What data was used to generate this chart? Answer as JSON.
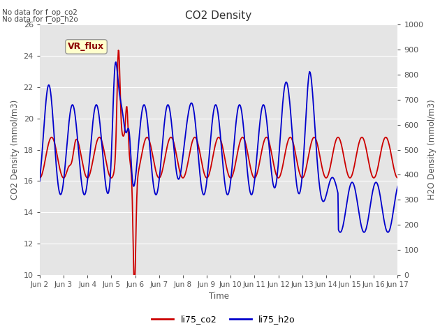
{
  "title": "CO2 Density",
  "xlabel": "Time",
  "ylabel_left": "CO2 Density (mmol/m3)",
  "ylabel_right": "H2O Density (mmol/m3)",
  "top_note1": "No data for f_op_co2",
  "top_note2": "No data for f_op_h2o",
  "vr_flux_label": "VR_flux",
  "ylim_left": [
    10,
    26
  ],
  "ylim_right": [
    0,
    1000
  ],
  "yticks_left": [
    10,
    12,
    14,
    16,
    18,
    20,
    22,
    24,
    26
  ],
  "yticks_right": [
    0,
    100,
    200,
    300,
    400,
    500,
    600,
    700,
    800,
    900,
    1000
  ],
  "xtick_labels": [
    "Jun 2",
    "Jun 3",
    "Jun 4",
    "Jun 5",
    "Jun 6",
    "Jun 7",
    "Jun 8",
    "Jun 9",
    "Jun 10",
    "Jun 11",
    "Jun 12",
    "Jun 13",
    "Jun 14",
    "Jun 15",
    "Jun 16",
    "Jun 17"
  ],
  "legend_labels": [
    "li75_co2",
    "li75_h2o"
  ],
  "legend_colors": [
    "#cc0000",
    "#0000cc"
  ],
  "background_color": "#e5e5e5",
  "co2_color": "#cc0000",
  "h2o_color": "#0000cc",
  "line_width": 1.3,
  "figsize": [
    6.4,
    4.8
  ],
  "dpi": 100
}
